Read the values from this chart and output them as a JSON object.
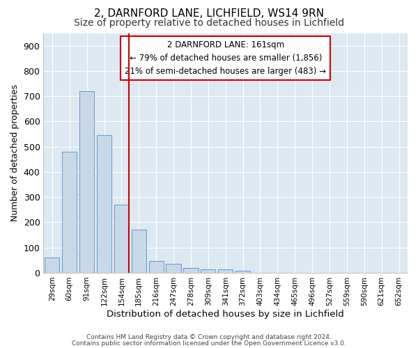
{
  "title_line1": "2, DARNFORD LANE, LICHFIELD, WS14 9RN",
  "title_line2": "Size of property relative to detached houses in Lichfield",
  "xlabel": "Distribution of detached houses by size in Lichfield",
  "ylabel": "Number of detached properties",
  "bar_labels": [
    "29sqm",
    "60sqm",
    "91sqm",
    "122sqm",
    "154sqm",
    "185sqm",
    "216sqm",
    "247sqm",
    "278sqm",
    "309sqm",
    "341sqm",
    "372sqm",
    "403sqm",
    "434sqm",
    "465sqm",
    "496sqm",
    "527sqm",
    "559sqm",
    "590sqm",
    "621sqm",
    "652sqm"
  ],
  "bar_values": [
    60,
    480,
    720,
    545,
    270,
    170,
    47,
    35,
    18,
    14,
    14,
    8,
    0,
    0,
    0,
    0,
    0,
    0,
    0,
    0,
    0
  ],
  "bar_color": "#c8d8e8",
  "bar_edgecolor": "#6699cc",
  "marker_index": 4,
  "marker_color": "#cc0000",
  "annotation_text": "2 DARNFORD LANE: 161sqm\n← 79% of detached houses are smaller (1,856)\n21% of semi-detached houses are larger (483) →",
  "annotation_box_color": "#cc0000",
  "ylim": [
    0,
    950
  ],
  "yticks": [
    0,
    100,
    200,
    300,
    400,
    500,
    600,
    700,
    800,
    900
  ],
  "background_color": "#dde8f0",
  "grid_color": "#ffffff",
  "fig_background": "#ffffff",
  "title_fontsize": 11,
  "subtitle_fontsize": 10,
  "footer_line1": "Contains HM Land Registry data © Crown copyright and database right 2024.",
  "footer_line2": "Contains public sector information licensed under the Open Government Licence v3.0."
}
